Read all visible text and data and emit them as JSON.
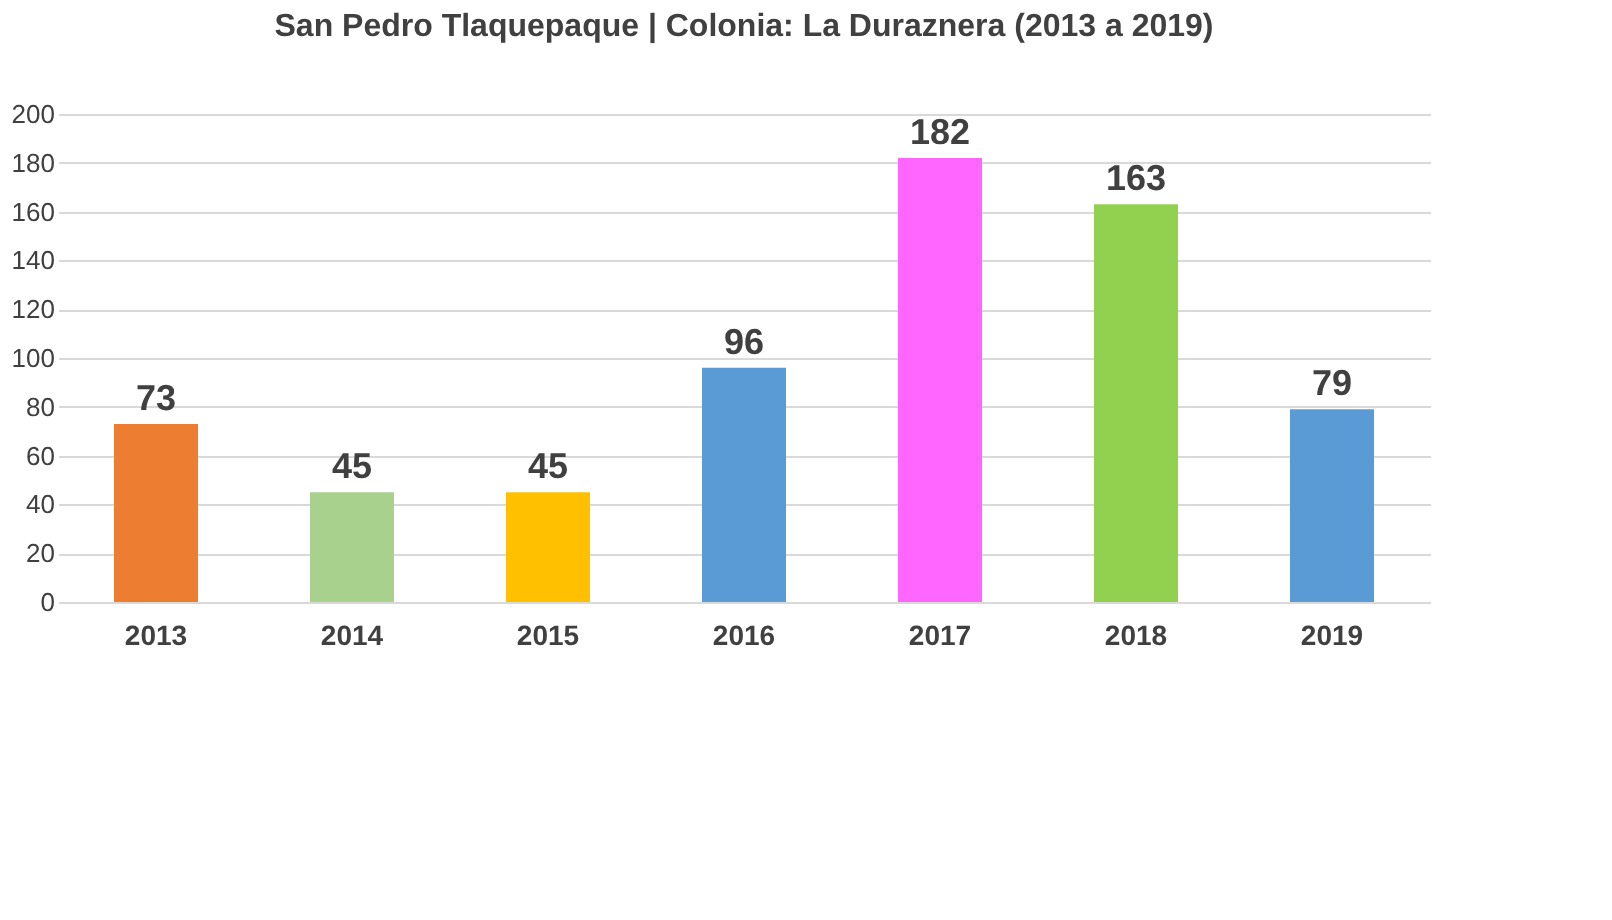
{
  "chart_data": {
    "type": "bar",
    "title": "San Pedro Tlaquepaque | Colonia: La Duraznera (2013 a 2019)",
    "categories": [
      "2013",
      "2014",
      "2015",
      "2016",
      "2017",
      "2018",
      "2019"
    ],
    "values": [
      73,
      45,
      45,
      96,
      182,
      163,
      79
    ],
    "colors": [
      "#ed7d31",
      "#a9d18e",
      "#ffc000",
      "#5b9bd5",
      "#ff66ff",
      "#92d050",
      "#5b9bd5"
    ],
    "ylim": [
      0,
      200
    ],
    "yticks": [
      0,
      20,
      40,
      60,
      80,
      100,
      120,
      140,
      160,
      180,
      200
    ],
    "grid": "y",
    "data_labels": true
  }
}
